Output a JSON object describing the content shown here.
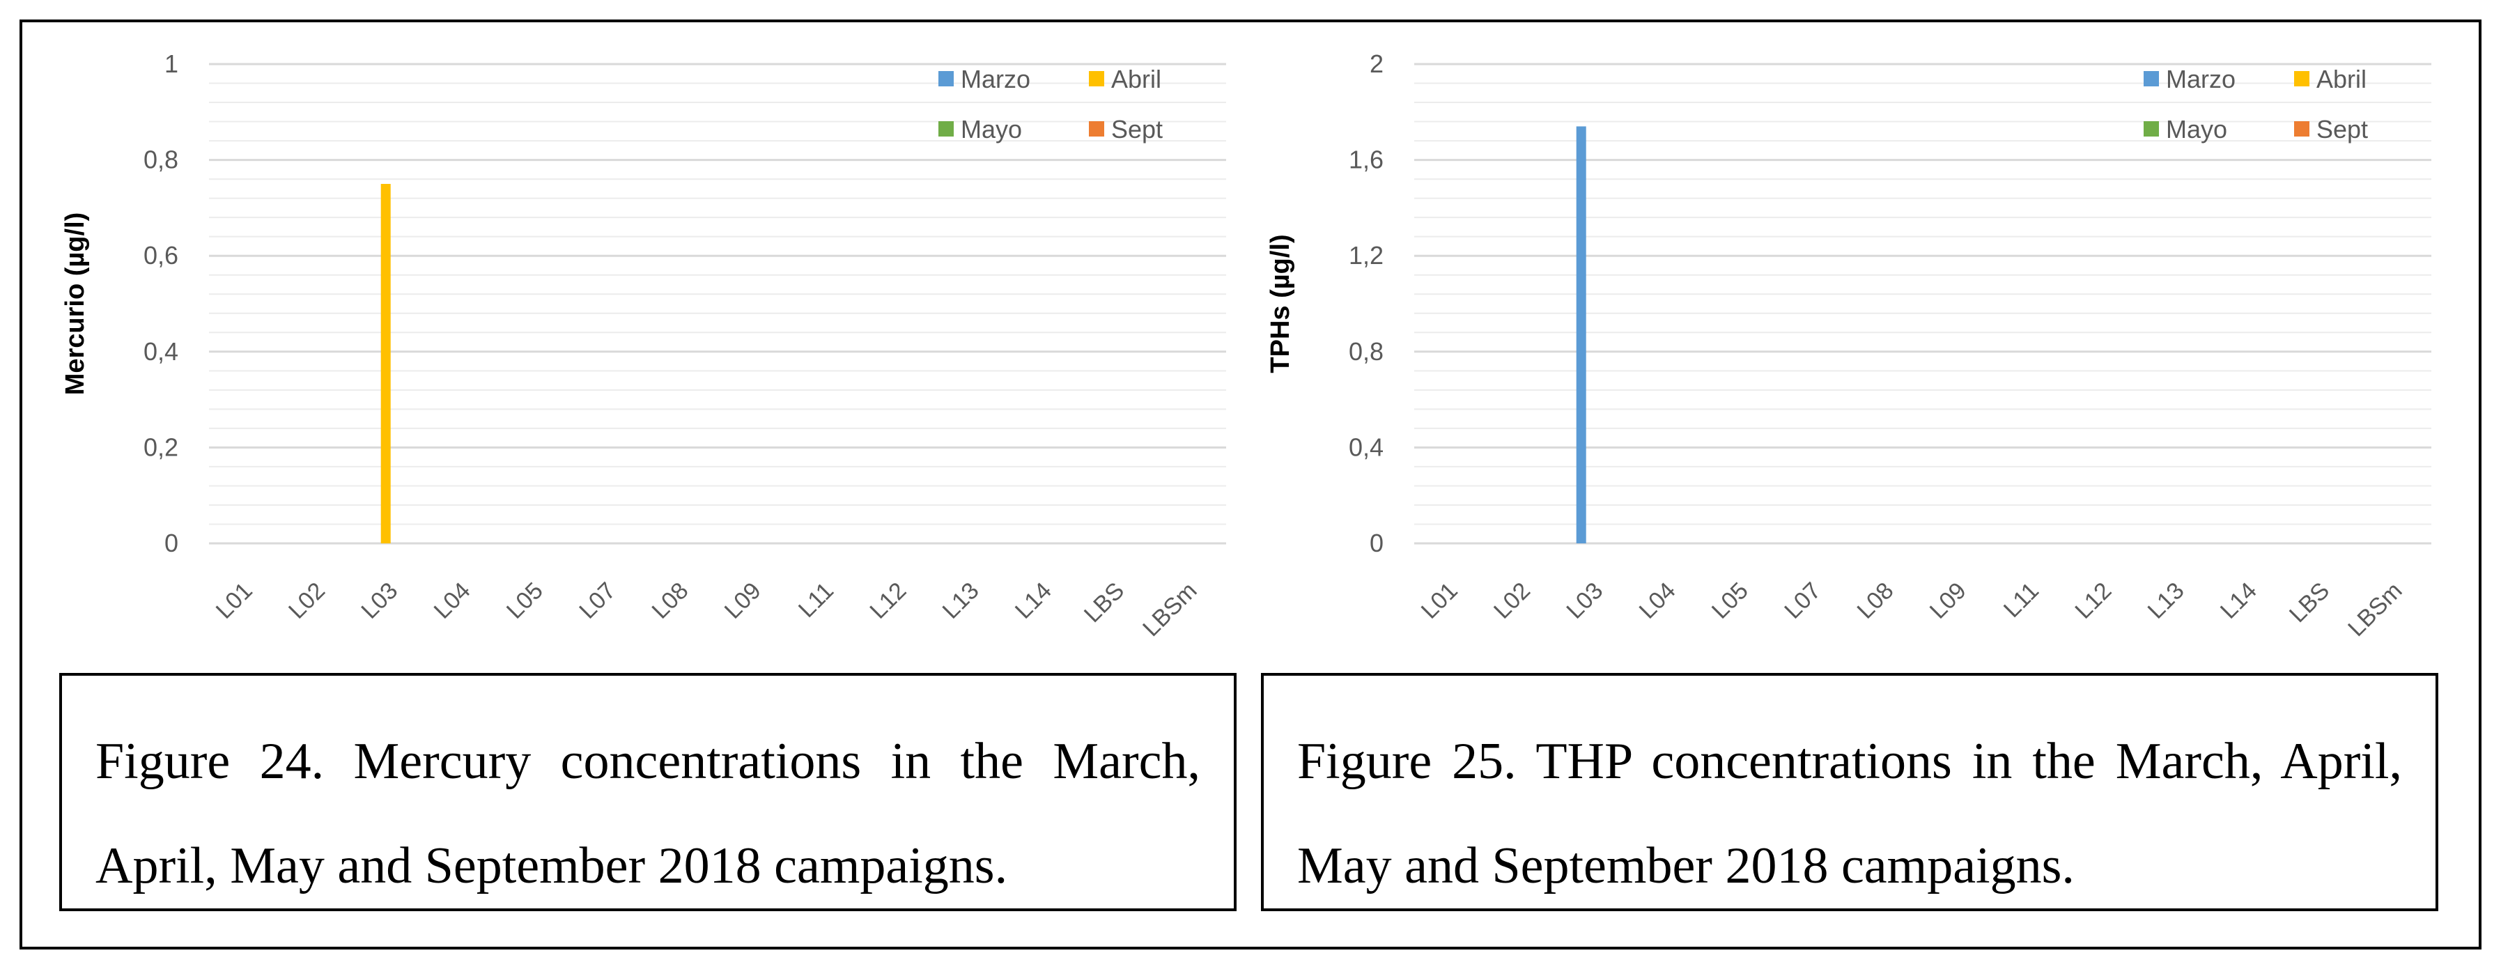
{
  "chart_data": [
    {
      "type": "bar",
      "ylabel": "Mercurio (µg/l)",
      "xlabel": "",
      "title": "",
      "ylim": [
        0,
        1
      ],
      "ytick_step": 0.2,
      "ytick_labels": [
        "0",
        "0,2",
        "0,4",
        "0,6",
        "0,8",
        "1"
      ],
      "grid": true,
      "legend_position": "top-right",
      "categories": [
        "L01",
        "L02",
        "L03",
        "L04",
        "L05",
        "L07",
        "L08",
        "L09",
        "L11",
        "L12",
        "L13",
        "L14",
        "LBS",
        "LBSm"
      ],
      "series": [
        {
          "name": "Marzo",
          "color": "#5b9bd5",
          "values": [
            0,
            0,
            0,
            0,
            0,
            0,
            0,
            0,
            0,
            0,
            0,
            0,
            0,
            0
          ]
        },
        {
          "name": "Abril",
          "color": "#ffc000",
          "values": [
            0,
            0,
            0.75,
            0,
            0,
            0,
            0,
            0,
            0,
            0,
            0,
            0,
            0,
            0
          ]
        },
        {
          "name": "Mayo",
          "color": "#70ad47",
          "values": [
            0,
            0,
            0,
            0,
            0,
            0,
            0,
            0,
            0,
            0,
            0,
            0,
            0,
            0
          ]
        },
        {
          "name": "Sept",
          "color": "#ed7d31",
          "values": [
            0,
            0,
            0,
            0,
            0,
            0,
            0,
            0,
            0,
            0,
            0,
            0,
            0,
            0
          ]
        }
      ]
    },
    {
      "type": "bar",
      "ylabel": "TPHs (µg/l)",
      "xlabel": "",
      "title": "",
      "ylim": [
        0,
        2
      ],
      "ytick_step": 0.4,
      "ytick_labels": [
        "0",
        "0,4",
        "0,8",
        "1,2",
        "1,6",
        "2"
      ],
      "grid": true,
      "legend_position": "top-right",
      "categories": [
        "L01",
        "L02",
        "L03",
        "L04",
        "L05",
        "L07",
        "L08",
        "L09",
        "L11",
        "L12",
        "L13",
        "L14",
        "LBS",
        "LBSm"
      ],
      "series": [
        {
          "name": "Marzo",
          "color": "#5b9bd5",
          "values": [
            0,
            0,
            1.74,
            0,
            0,
            0,
            0,
            0,
            0,
            0,
            0,
            0,
            0,
            0
          ]
        },
        {
          "name": "Abril",
          "color": "#ffc000",
          "values": [
            0,
            0,
            0,
            0,
            0,
            0,
            0,
            0,
            0,
            0,
            0,
            0,
            0,
            0
          ]
        },
        {
          "name": "Mayo",
          "color": "#70ad47",
          "values": [
            0,
            0,
            0,
            0,
            0,
            0,
            0,
            0,
            0,
            0,
            0,
            0,
            0,
            0
          ]
        },
        {
          "name": "Sept",
          "color": "#ed7d31",
          "values": [
            0,
            0,
            0,
            0,
            0,
            0,
            0,
            0,
            0,
            0,
            0,
            0,
            0,
            0
          ]
        }
      ]
    }
  ],
  "captions": [
    "Figure 24. Mercury concentrations in the March, April, May and September 2018 campaigns.",
    "Figure 25. THP concentrations in the March, April, May and September 2018 campaigns."
  ]
}
